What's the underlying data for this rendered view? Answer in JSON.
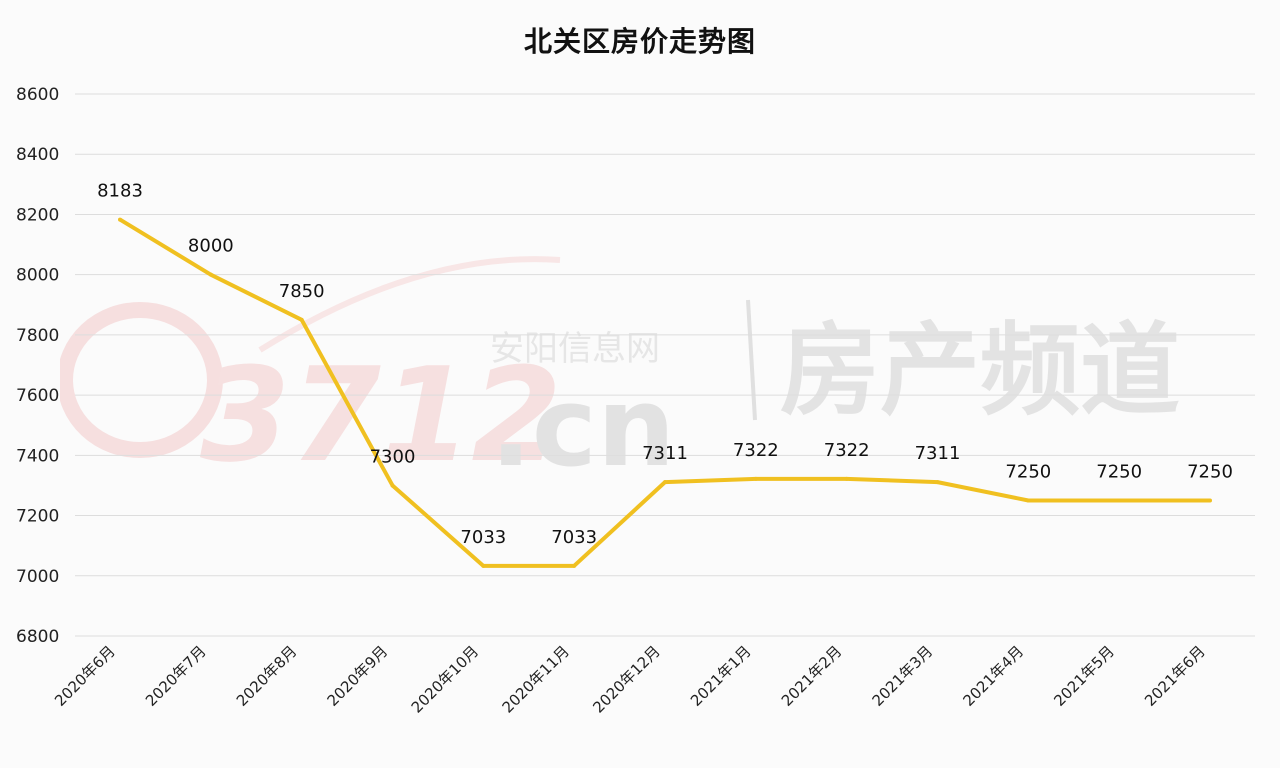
{
  "chart_data": {
    "type": "line",
    "title": "北关区房价走势图",
    "categories": [
      "2020年6月",
      "2020年7月",
      "2020年8月",
      "2020年9月",
      "2020年10月",
      "2020年11月",
      "2020年12月",
      "2021年1月",
      "2021年2月",
      "2021年3月",
      "2021年4月",
      "2021年5月",
      "2021年6月"
    ],
    "values": [
      8183,
      8000,
      7850,
      7300,
      7033,
      7033,
      7311,
      7322,
      7322,
      7311,
      7250,
      7250,
      7250
    ],
    "ylim": [
      6800,
      8600
    ],
    "yticks": [
      6800,
      7000,
      7200,
      7400,
      7600,
      7800,
      8000,
      8200,
      8400,
      8600
    ],
    "grid": true,
    "line_color": "#f0c020"
  },
  "watermark": {
    "logo": "3712",
    "site": ".cn",
    "site_cn": "安阳信息网",
    "channel": "房产频道",
    "color": "#d8d8d8"
  }
}
